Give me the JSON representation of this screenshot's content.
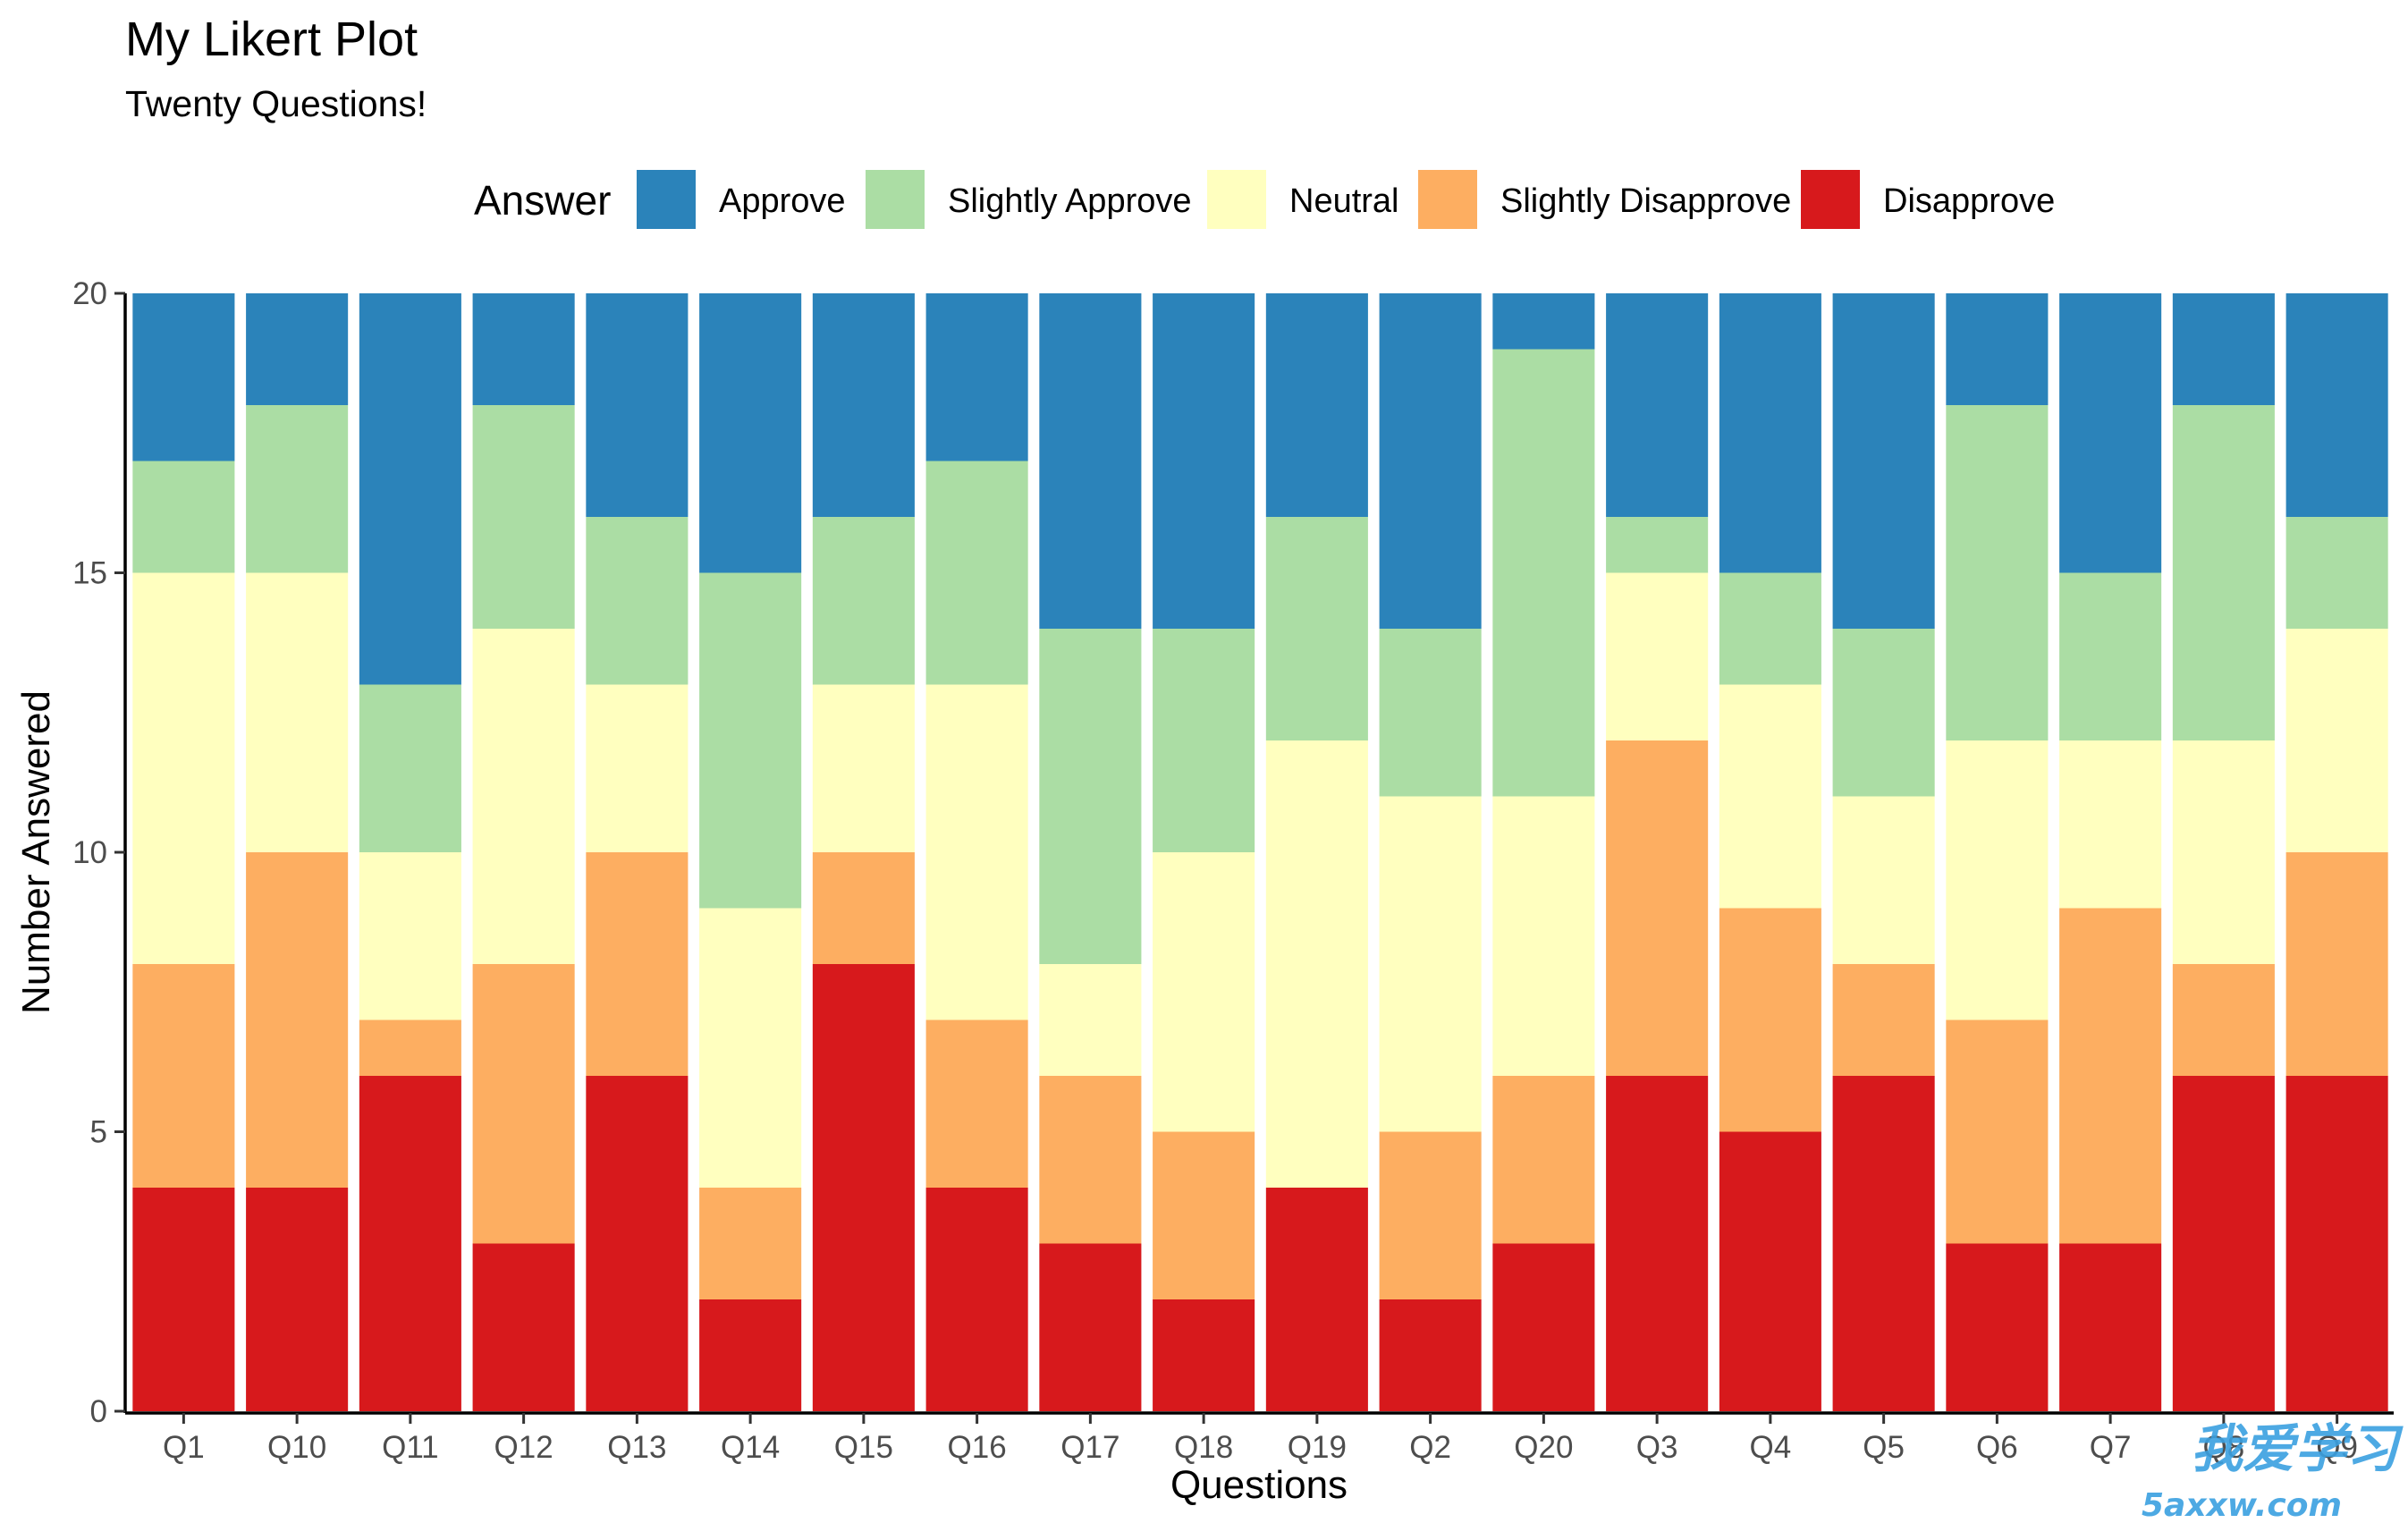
{
  "chart_data": {
    "type": "bar",
    "stacked": true,
    "title": "My Likert Plot",
    "subtitle": "Twenty Questions!",
    "xlabel": "Questions",
    "ylabel": "Number Answered",
    "ylim": [
      0,
      20
    ],
    "yticks": [
      0,
      5,
      10,
      15,
      20
    ],
    "grid": false,
    "legend": {
      "title": "Answer",
      "position": "top"
    },
    "categories": [
      "Q1",
      "Q10",
      "Q11",
      "Q12",
      "Q13",
      "Q14",
      "Q15",
      "Q16",
      "Q17",
      "Q18",
      "Q19",
      "Q2",
      "Q20",
      "Q3",
      "Q4",
      "Q5",
      "Q6",
      "Q7",
      "Q8",
      "Q9"
    ],
    "series": [
      {
        "name": "Disapprove",
        "color": "#d7191c",
        "values": [
          4,
          4,
          6,
          3,
          6,
          2,
          8,
          4,
          3,
          2,
          4,
          2,
          3,
          6,
          5,
          6,
          3,
          3,
          6,
          6
        ]
      },
      {
        "name": "Slightly Disapprove",
        "color": "#fdae61",
        "values": [
          4,
          6,
          1,
          5,
          4,
          2,
          2,
          3,
          3,
          3,
          0,
          3,
          3,
          6,
          4,
          2,
          4,
          6,
          2,
          4
        ]
      },
      {
        "name": "Neutral",
        "color": "#ffffbf",
        "values": [
          7,
          5,
          3,
          6,
          3,
          5,
          3,
          6,
          2,
          5,
          8,
          6,
          5,
          3,
          4,
          3,
          5,
          3,
          4,
          4
        ]
      },
      {
        "name": "Slightly Approve",
        "color": "#abdda4",
        "values": [
          2,
          3,
          3,
          4,
          3,
          6,
          3,
          4,
          6,
          4,
          4,
          3,
          8,
          1,
          2,
          3,
          6,
          3,
          6,
          2
        ]
      },
      {
        "name": "Approve",
        "color": "#2b83ba",
        "values": [
          3,
          2,
          7,
          2,
          4,
          5,
          4,
          3,
          6,
          6,
          4,
          6,
          1,
          4,
          5,
          6,
          2,
          5,
          2,
          4
        ]
      }
    ],
    "legend_order": [
      "Approve",
      "Slightly Approve",
      "Neutral",
      "Slightly Disapprove",
      "Disapprove"
    ]
  },
  "watermark": {
    "text": "我爱学习",
    "site": "5axxw.com"
  }
}
